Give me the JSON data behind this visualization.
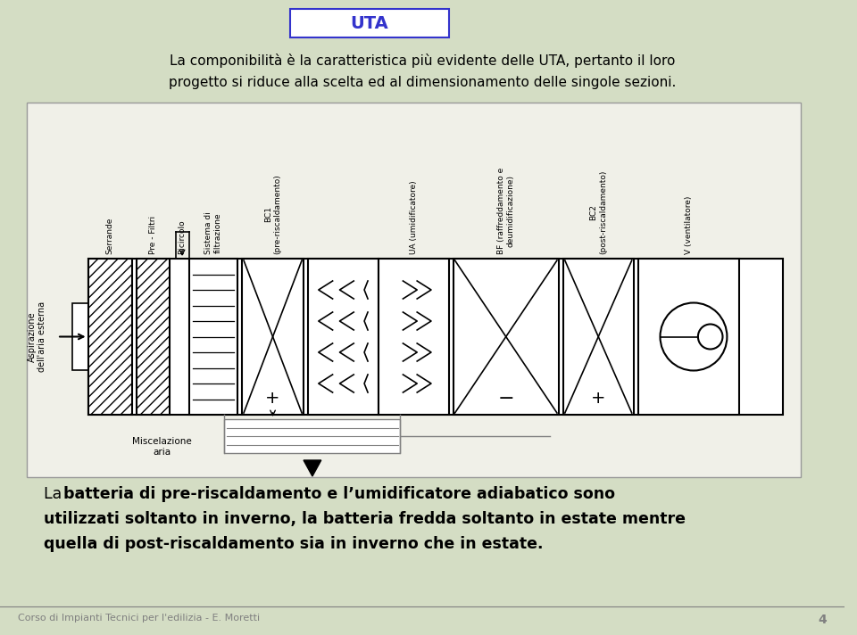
{
  "title": "UTA",
  "title_box_color": "#ffffff",
  "title_text_color": "#3333cc",
  "title_border_color": "#3333cc",
  "bg_color": "#d4ddc4",
  "diagram_bg": "#ffffff",
  "text_color": "#000000",
  "bold_color": "#000000",
  "footer_text": "Corso di Impianti Tecnici per l'edilizia - E. Moretti",
  "page_number": "4",
  "line1": "La componibilità è la caratteristica più evidente delle UTA, pertanto il loro",
  "line2": "progetto si riduce alla scelta ed al dimensionamento delle singole sezioni.",
  "bottom_text_plain": "La ",
  "bottom_text_bold1": "batteria di pre-riscaldamento e l’umidificatore adiabatico sono",
  "bottom_line2": "utilizzati soltanto in inverno, la batteria fredda soltanto in estate mentre",
  "bottom_line3": "quella di post-riscaldamento sia in inverno che in estate.",
  "labels": [
    "Aspirazione\ndell'aria esterna",
    "Serrande",
    "Pre - Filtri",
    "Ricircolo",
    "Sistema di\nfiltrazione",
    "BC1\n(pre-riscaldamento)",
    "UA (umidificatore)",
    "BF (raffreddamento e\ndeumidificazione)",
    "BC2\n(post-riscaldamento)",
    "V (ventilatore)"
  ],
  "miscelazione_label": "Miscelazione\naria"
}
